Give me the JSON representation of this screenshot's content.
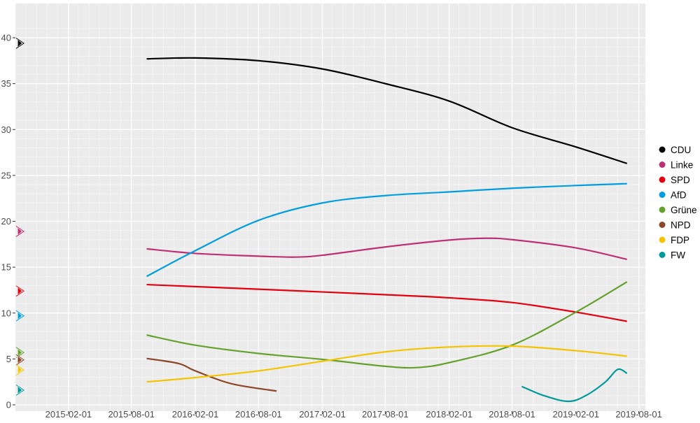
{
  "chart_data": {
    "type": "line",
    "title": "",
    "xlabel": "",
    "ylabel": "",
    "xlim": [
      "2014-09-01",
      "2019-08-20"
    ],
    "ylim": [
      0,
      41.5
    ],
    "grid": true,
    "legend_placement": "right",
    "x_ticks": [
      "2015-02-01",
      "2015-08-01",
      "2016-02-01",
      "2016-08-01",
      "2017-02-01",
      "2017-08-01",
      "2018-02-01",
      "2018-08-01",
      "2019-02-01",
      "2019-08-01"
    ],
    "y_ticks": [
      0,
      5,
      10,
      15,
      20,
      25,
      30,
      35,
      40
    ],
    "series": [
      {
        "name": "CDU",
        "color": "#000000",
        "marker_value": 39.4,
        "points": [
          [
            "2015-09-14",
            37.7
          ],
          [
            "2016-02-01",
            37.8
          ],
          [
            "2016-08-01",
            37.5
          ],
          [
            "2017-02-01",
            36.6
          ],
          [
            "2017-08-01",
            35.0
          ],
          [
            "2018-02-01",
            33.1
          ],
          [
            "2018-08-01",
            30.2
          ],
          [
            "2019-02-01",
            28.1
          ],
          [
            "2019-06-28",
            26.3
          ]
        ]
      },
      {
        "name": "Linke",
        "color": "#be3075",
        "marker_value": 18.9,
        "points": [
          [
            "2015-09-14",
            17.0
          ],
          [
            "2016-02-01",
            16.5
          ],
          [
            "2016-08-01",
            16.2
          ],
          [
            "2016-11-15",
            16.1
          ],
          [
            "2017-02-01",
            16.3
          ],
          [
            "2017-08-01",
            17.2
          ],
          [
            "2018-02-01",
            17.95
          ],
          [
            "2018-05-15",
            18.15
          ],
          [
            "2018-08-01",
            18.0
          ],
          [
            "2019-02-01",
            17.1
          ],
          [
            "2019-06-28",
            15.85
          ]
        ]
      },
      {
        "name": "SPD",
        "color": "#e3000f",
        "marker_value": 12.4,
        "points": [
          [
            "2015-09-14",
            13.1
          ],
          [
            "2016-08-01",
            12.6
          ],
          [
            "2017-02-01",
            12.3
          ],
          [
            "2017-08-01",
            12.0
          ],
          [
            "2018-02-01",
            11.66
          ],
          [
            "2018-08-01",
            11.15
          ],
          [
            "2019-02-01",
            10.1
          ],
          [
            "2019-06-28",
            9.1
          ]
        ]
      },
      {
        "name": "AfD",
        "color": "#009ee0",
        "marker_value": 9.7,
        "points": [
          [
            "2015-09-14",
            14.0
          ],
          [
            "2016-02-01",
            16.8
          ],
          [
            "2016-08-01",
            20.1
          ],
          [
            "2017-02-01",
            22.0
          ],
          [
            "2017-08-01",
            22.8
          ],
          [
            "2018-02-01",
            23.2
          ],
          [
            "2018-08-01",
            23.6
          ],
          [
            "2019-02-01",
            23.9
          ],
          [
            "2019-06-28",
            24.1
          ]
        ]
      },
      {
        "name": "Grüne",
        "color": "#64a12d",
        "marker_value": 5.7,
        "points": [
          [
            "2015-09-14",
            7.6
          ],
          [
            "2016-02-01",
            6.5
          ],
          [
            "2016-08-01",
            5.6
          ],
          [
            "2017-02-01",
            4.95
          ],
          [
            "2017-08-01",
            4.2
          ],
          [
            "2017-11-01",
            4.06
          ],
          [
            "2018-02-01",
            4.6
          ],
          [
            "2018-08-01",
            6.5
          ],
          [
            "2019-02-01",
            10.1
          ],
          [
            "2019-06-28",
            13.4
          ]
        ]
      },
      {
        "name": "NPD",
        "color": "#8b4726",
        "marker_value": 4.9,
        "points": [
          [
            "2015-09-14",
            5.05
          ],
          [
            "2015-12-15",
            4.5
          ],
          [
            "2016-02-01",
            3.7
          ],
          [
            "2016-05-15",
            2.3
          ],
          [
            "2016-09-22",
            1.5
          ]
        ]
      },
      {
        "name": "FDP",
        "color": "#f5c400",
        "marker_value": 3.8,
        "points": [
          [
            "2015-09-14",
            2.5
          ],
          [
            "2016-02-01",
            2.97
          ],
          [
            "2016-08-01",
            3.7
          ],
          [
            "2017-02-01",
            4.75
          ],
          [
            "2017-08-01",
            5.77
          ],
          [
            "2018-02-01",
            6.3
          ],
          [
            "2018-08-01",
            6.4
          ],
          [
            "2019-02-01",
            5.9
          ],
          [
            "2019-06-28",
            5.3
          ]
        ]
      },
      {
        "name": "FW",
        "color": "#009999",
        "marker_value": 1.6,
        "points": [
          [
            "2018-08-29",
            2.0
          ],
          [
            "2018-11-01",
            1.0
          ],
          [
            "2019-01-10",
            0.38
          ],
          [
            "2019-03-01",
            1.0
          ],
          [
            "2019-04-27",
            2.5
          ],
          [
            "2019-06-01",
            3.86
          ],
          [
            "2019-06-28",
            3.43
          ]
        ]
      }
    ]
  }
}
